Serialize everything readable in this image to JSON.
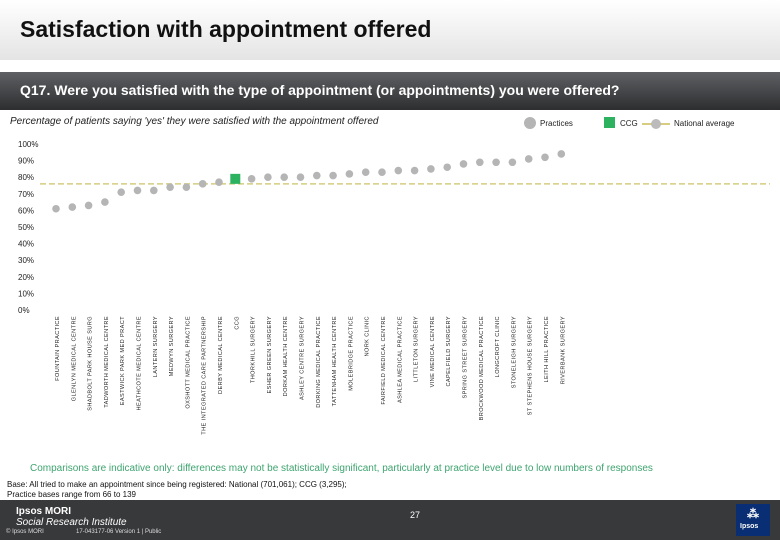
{
  "page": {
    "title": "Satisfaction with appointment offered",
    "question": "Q17. Were you satisfied with the type of appointment (or appointments) you were offered?",
    "subtitle": "Percentage of patients saying 'yes' they were satisfied with the appointment offered",
    "note": "Comparisons are indicative only: differences may not be statistically significant, particularly at practice level due to low numbers of responses",
    "base": "Base: All tried to make an appointment since being registered: National (701,061); CCG (3,295); Practice bases range from 66 to 139",
    "footer": {
      "logo_line1": "Ipsos MORI",
      "logo_line2": "Social Research Institute",
      "page_number": "27",
      "copyright": "© Ipsos MORI",
      "version": "17-043177-06 Version 1 | Public",
      "badge_label": "Ipsos"
    }
  },
  "legend": {
    "practices": "Practices",
    "ccg": "CCG",
    "national": "National average"
  },
  "colors": {
    "practice": "#b5b5b5",
    "ccg": "#2db360",
    "national": "#d7cc80",
    "note": "#3ea46f"
  },
  "chart_data": {
    "type": "scatter",
    "title": "",
    "xlabel": "",
    "ylabel": "",
    "ylim": [
      0,
      100
    ],
    "yticks": [
      "0%",
      "10%",
      "20%",
      "30%",
      "40%",
      "50%",
      "60%",
      "70%",
      "80%",
      "90%",
      "100%"
    ],
    "national_average": 76,
    "categories": [
      "FOUNTAIN PRACTICE",
      "GLENLYN MEDICAL CENTRE",
      "SHADBOLT PARK HOUSE SURG",
      "TADWORTH MEDICAL CENTRE",
      "EASTWICK PARK MED PRACT",
      "HEATHCOTE MEDICAL CENTRE",
      "LANTERN SURGERY",
      "MEDWYN SURGERY",
      "OXSHOTT MEDICAL PRACTICE",
      "THE INTEGRATED CARE PARTNERSHIP",
      "DERBY MEDICAL CENTRE",
      "CCG",
      "THORKHILL SURGERY",
      "ESHER GREEN SURGERY",
      "DORKAM HEALTH CENTRE",
      "ASHLEY CENTRE SURGERY",
      "DORKING MEDICAL PRACTICE",
      "TATTENHAM HEALTH CENTRE",
      "MOLEBRIDGE PRACTICE",
      "NORK CLINIC",
      "FAIRFIELD MEDICAL CENTRE",
      "ASHLEA MEDICAL PRACTICE",
      "LITTLETON SURGERY",
      "VINE MEDICAL CENTRE",
      "CAPELFIELD SURGERY",
      "SPRING STREET SURGERY",
      "BROCKWOOD MEDICAL PRACTICE",
      "LONGCROFT CLINIC",
      "STONELEIGH SURGERY",
      "ST STEPHENS HOUSE SURGERY",
      "LEITH HILL PRACTICE",
      "RIVERBANK SURGERY"
    ],
    "values": [
      61,
      62,
      63,
      65,
      71,
      72,
      72,
      74,
      74,
      76,
      77,
      79,
      79,
      80,
      80,
      80,
      81,
      81,
      82,
      83,
      83,
      84,
      84,
      85,
      86,
      88,
      89,
      89,
      89,
      91,
      92,
      94
    ],
    "ccg_index": 11
  }
}
